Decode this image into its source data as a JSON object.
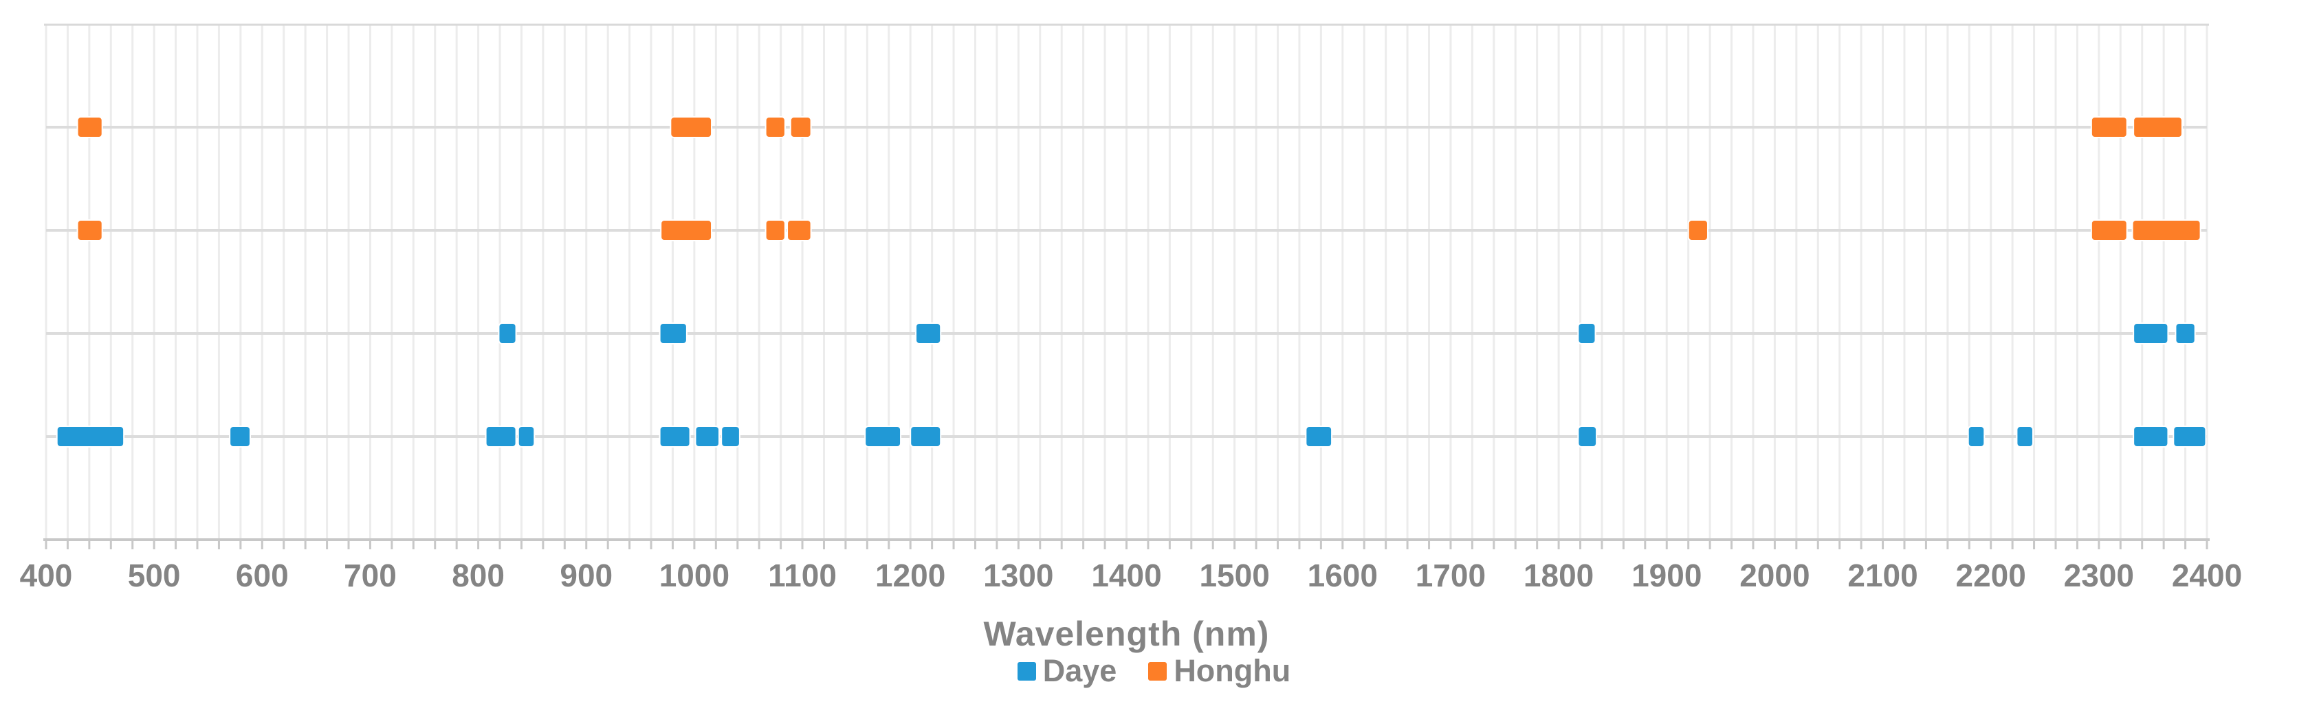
{
  "chart_data": {
    "type": "bar",
    "subtype": "horizontal-wavelength-band-selection",
    "title": "",
    "xlabel": "Wavelength (nm)",
    "ylabel": "",
    "xlim": [
      400,
      2400
    ],
    "x_major_tick_interval": 100,
    "x_minor_gridline_interval": 20,
    "x_tick_labels": [
      "400",
      "500",
      "600",
      "700",
      "800",
      "900",
      "1000",
      "1100",
      "1200",
      "1300",
      "1400",
      "1500",
      "1600",
      "1700",
      "1800",
      "1900",
      "2000",
      "2100",
      "2200",
      "2300",
      "2400"
    ],
    "grid": true,
    "legend_position": "bottom",
    "legend": [
      {
        "label": "Daye",
        "color": "#2199D6"
      },
      {
        "label": "Honghu",
        "color": "#FD7E27"
      }
    ],
    "rows": [
      {
        "series": "Honghu",
        "color": "#FD7E27",
        "bands_nm": [
          [
            429,
            452
          ],
          [
            978,
            1016
          ],
          [
            1066,
            1084
          ],
          [
            1089,
            1108
          ],
          [
            2293,
            2326
          ],
          [
            2332,
            2377
          ]
        ]
      },
      {
        "series": "Honghu",
        "color": "#FD7E27",
        "bands_nm": [
          [
            429,
            452
          ],
          [
            969,
            1016
          ],
          [
            1066,
            1084
          ],
          [
            1086,
            1108
          ],
          [
            1920,
            1938
          ],
          [
            2293,
            2326
          ],
          [
            2331,
            2394
          ]
        ]
      },
      {
        "series": "Daye",
        "color": "#2199D6",
        "bands_nm": [
          [
            819,
            835
          ],
          [
            968,
            993
          ],
          [
            1205,
            1228
          ],
          [
            1818,
            1834
          ],
          [
            2332,
            2364
          ],
          [
            2371,
            2389
          ]
        ]
      },
      {
        "series": "Daye",
        "color": "#2199D6",
        "bands_nm": [
          [
            410,
            472
          ],
          [
            570,
            589
          ],
          [
            807,
            835
          ],
          [
            837,
            852
          ],
          [
            968,
            996
          ],
          [
            1001,
            1023
          ],
          [
            1025,
            1042
          ],
          [
            1158,
            1191
          ],
          [
            1200,
            1228
          ],
          [
            1566,
            1590
          ],
          [
            1818,
            1835
          ],
          [
            2179,
            2194
          ],
          [
            2224,
            2239
          ],
          [
            2332,
            2364
          ],
          [
            2369,
            2399
          ]
        ]
      }
    ]
  }
}
